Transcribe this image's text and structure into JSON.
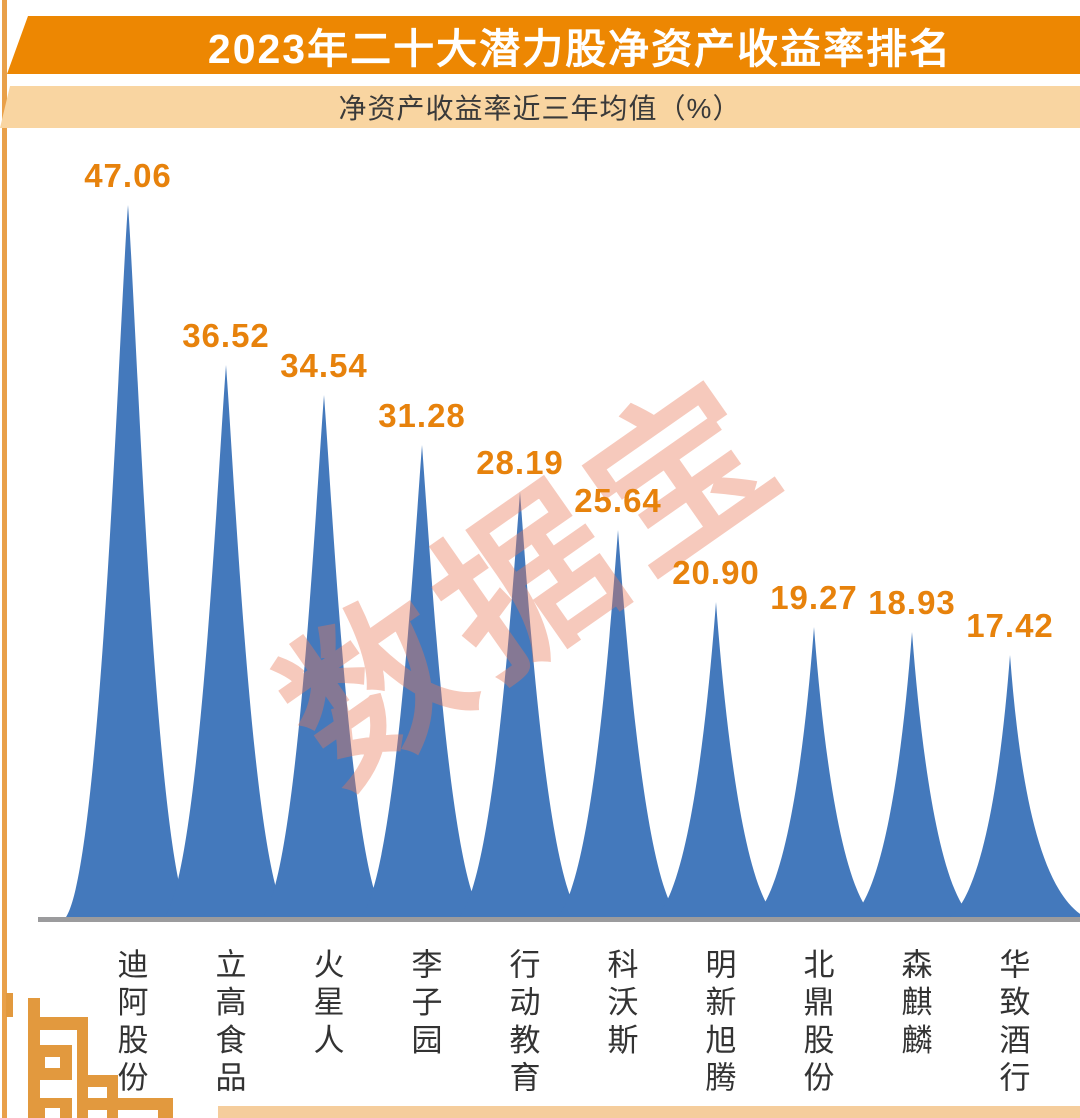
{
  "chart_data": {
    "type": "area",
    "title": "2023年二十大潜力股净资产收益率排名",
    "subtitle": "净资产收益率近三年均值（%）",
    "watermark": "数据宝",
    "categories": [
      "迪阿股份",
      "立高食品",
      "火星人",
      "李子园",
      "行动教育",
      "科沃斯",
      "明新旭腾",
      "北鼎股份",
      "森麒麟",
      "华致酒行"
    ],
    "values": [
      47.06,
      36.52,
      34.54,
      31.28,
      28.19,
      25.64,
      20.9,
      19.27,
      18.93,
      17.42
    ],
    "value_labels": [
      "47.06",
      "36.52",
      "34.54",
      "31.28",
      "28.19",
      "25.64",
      "20.90",
      "19.27",
      "18.93",
      "17.42"
    ],
    "unit": "%",
    "ylim": [
      0,
      47.06
    ],
    "grid": false,
    "legend": false,
    "colors": {
      "spike": "#4479BC",
      "value_label": "#E7820C",
      "banner": "#ED8702",
      "subtitle_bg": "#F9D5A1",
      "baseline": "#9B9B9D",
      "watermark": "#E87858",
      "ornament": "#E2993E",
      "category_text": "#333333"
    }
  }
}
